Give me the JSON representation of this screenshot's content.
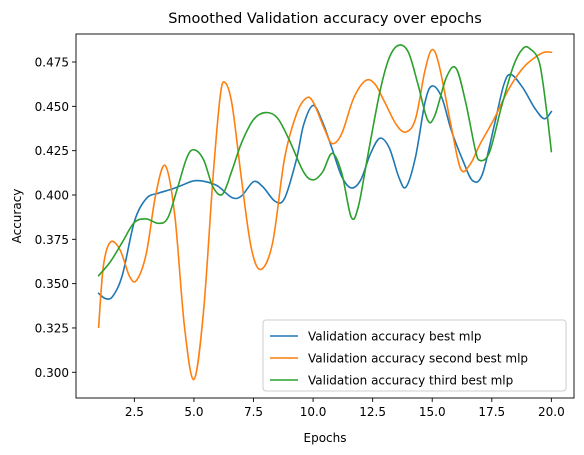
{
  "chart_data": {
    "type": "line",
    "title": "Smoothed Validation accuracy over epochs",
    "xlabel": "Epochs",
    "ylabel": "Accuracy",
    "xlim": [
      0.05,
      20.95
    ],
    "ylim": [
      0.2855,
      0.4908
    ],
    "xticks": [
      2.5,
      5.0,
      7.5,
      10.0,
      12.5,
      15.0,
      17.5,
      20.0
    ],
    "xtick_labels": [
      "2.5",
      "5.0",
      "7.5",
      "10.0",
      "12.5",
      "15.0",
      "17.5",
      "20.0"
    ],
    "yticks": [
      0.3,
      0.325,
      0.35,
      0.375,
      0.4,
      0.425,
      0.45,
      0.475
    ],
    "ytick_labels": [
      "0.300",
      "0.325",
      "0.350",
      "0.375",
      "0.400",
      "0.425",
      "0.450",
      "0.475"
    ],
    "grid": false,
    "legend_position": "lower-right",
    "series": [
      {
        "name": "Validation accuracy best mlp",
        "color": "#1f77b4",
        "points": [
          [
            1.0,
            0.3445
          ],
          [
            1.3,
            0.3415
          ],
          [
            1.6,
            0.343
          ],
          [
            2.0,
            0.355
          ],
          [
            2.5,
            0.385
          ],
          [
            3.0,
            0.398
          ],
          [
            3.5,
            0.401
          ],
          [
            4.0,
            0.403
          ],
          [
            4.5,
            0.4055
          ],
          [
            5.0,
            0.408
          ],
          [
            5.5,
            0.4075
          ],
          [
            6.0,
            0.405
          ],
          [
            6.6,
            0.3985
          ],
          [
            7.0,
            0.3995
          ],
          [
            7.5,
            0.4075
          ],
          [
            7.9,
            0.4045
          ],
          [
            8.4,
            0.3965
          ],
          [
            8.8,
            0.398
          ],
          [
            9.3,
            0.42
          ],
          [
            9.6,
            0.4395
          ],
          [
            10.0,
            0.4505
          ],
          [
            10.4,
            0.441
          ],
          [
            10.8,
            0.426
          ],
          [
            11.2,
            0.4105
          ],
          [
            11.6,
            0.404
          ],
          [
            12.0,
            0.4085
          ],
          [
            12.4,
            0.423
          ],
          [
            12.8,
            0.432
          ],
          [
            13.2,
            0.4265
          ],
          [
            13.6,
            0.41
          ],
          [
            13.9,
            0.4045
          ],
          [
            14.3,
            0.4215
          ],
          [
            14.7,
            0.4525
          ],
          [
            15.0,
            0.4615
          ],
          [
            15.4,
            0.455
          ],
          [
            15.8,
            0.4365
          ],
          [
            16.3,
            0.419
          ],
          [
            16.7,
            0.408
          ],
          [
            17.1,
            0.4115
          ],
          [
            17.6,
            0.439
          ],
          [
            18.0,
            0.462
          ],
          [
            18.3,
            0.468
          ],
          [
            18.8,
            0.4605
          ],
          [
            19.3,
            0.449
          ],
          [
            19.7,
            0.443
          ],
          [
            20.0,
            0.447
          ]
        ]
      },
      {
        "name": "Validation accuracy second best mlp",
        "color": "#ff7f0e",
        "points": [
          [
            1.0,
            0.3255
          ],
          [
            1.2,
            0.36
          ],
          [
            1.5,
            0.3735
          ],
          [
            1.9,
            0.369
          ],
          [
            2.3,
            0.354
          ],
          [
            2.6,
            0.352
          ],
          [
            3.0,
            0.367
          ],
          [
            3.4,
            0.4005
          ],
          [
            3.8,
            0.4165
          ],
          [
            4.2,
            0.388
          ],
          [
            4.6,
            0.326
          ],
          [
            5.0,
            0.296
          ],
          [
            5.4,
            0.334
          ],
          [
            5.8,
            0.41
          ],
          [
            6.1,
            0.4555
          ],
          [
            6.3,
            0.4635
          ],
          [
            6.6,
            0.451
          ],
          [
            7.0,
            0.4085
          ],
          [
            7.4,
            0.3705
          ],
          [
            7.8,
            0.358
          ],
          [
            8.3,
            0.373
          ],
          [
            8.8,
            0.4205
          ],
          [
            9.3,
            0.4455
          ],
          [
            9.7,
            0.4545
          ],
          [
            10.0,
            0.4525
          ],
          [
            10.5,
            0.4365
          ],
          [
            10.8,
            0.429
          ],
          [
            11.2,
            0.4345
          ],
          [
            11.7,
            0.4545
          ],
          [
            12.2,
            0.4645
          ],
          [
            12.6,
            0.4625
          ],
          [
            13.0,
            0.4525
          ],
          [
            13.5,
            0.4395
          ],
          [
            13.9,
            0.4355
          ],
          [
            14.3,
            0.443
          ],
          [
            14.7,
            0.4705
          ],
          [
            15.0,
            0.482
          ],
          [
            15.3,
            0.4725
          ],
          [
            15.8,
            0.4385
          ],
          [
            16.2,
            0.4145
          ],
          [
            16.6,
            0.4175
          ],
          [
            17.0,
            0.4285
          ],
          [
            17.6,
            0.443
          ],
          [
            18.2,
            0.4595
          ],
          [
            18.8,
            0.4715
          ],
          [
            19.3,
            0.4775
          ],
          [
            19.7,
            0.4805
          ],
          [
            20.0,
            0.4805
          ]
        ]
      },
      {
        "name": "Validation accuracy third best mlp",
        "color": "#2ca02c",
        "points": [
          [
            1.0,
            0.3545
          ],
          [
            1.5,
            0.3625
          ],
          [
            2.0,
            0.3735
          ],
          [
            2.5,
            0.3845
          ],
          [
            3.0,
            0.3865
          ],
          [
            3.5,
            0.384
          ],
          [
            3.9,
            0.387
          ],
          [
            4.3,
            0.4035
          ],
          [
            4.7,
            0.421
          ],
          [
            5.0,
            0.4255
          ],
          [
            5.4,
            0.42
          ],
          [
            5.8,
            0.4045
          ],
          [
            6.2,
            0.4005
          ],
          [
            6.6,
            0.414
          ],
          [
            7.0,
            0.4295
          ],
          [
            7.5,
            0.4425
          ],
          [
            8.0,
            0.4465
          ],
          [
            8.5,
            0.4435
          ],
          [
            9.0,
            0.431
          ],
          [
            9.6,
            0.413
          ],
          [
            10.0,
            0.4085
          ],
          [
            10.4,
            0.413
          ],
          [
            10.8,
            0.4235
          ],
          [
            11.2,
            0.4125
          ],
          [
            11.6,
            0.3875
          ],
          [
            11.9,
            0.3935
          ],
          [
            12.3,
            0.4225
          ],
          [
            12.8,
            0.458
          ],
          [
            13.2,
            0.4775
          ],
          [
            13.6,
            0.4845
          ],
          [
            14.0,
            0.4805
          ],
          [
            14.4,
            0.4625
          ],
          [
            14.8,
            0.4425
          ],
          [
            15.1,
            0.4445
          ],
          [
            15.6,
            0.4665
          ],
          [
            16.0,
            0.4715
          ],
          [
            16.4,
            0.4525
          ],
          [
            16.8,
            0.426
          ],
          [
            17.0,
            0.4195
          ],
          [
            17.4,
            0.424
          ],
          [
            17.9,
            0.4495
          ],
          [
            18.4,
            0.4725
          ],
          [
            18.8,
            0.4825
          ],
          [
            19.1,
            0.4825
          ],
          [
            19.5,
            0.4745
          ],
          [
            19.8,
            0.4475
          ],
          [
            20.0,
            0.4245
          ]
        ]
      }
    ]
  }
}
